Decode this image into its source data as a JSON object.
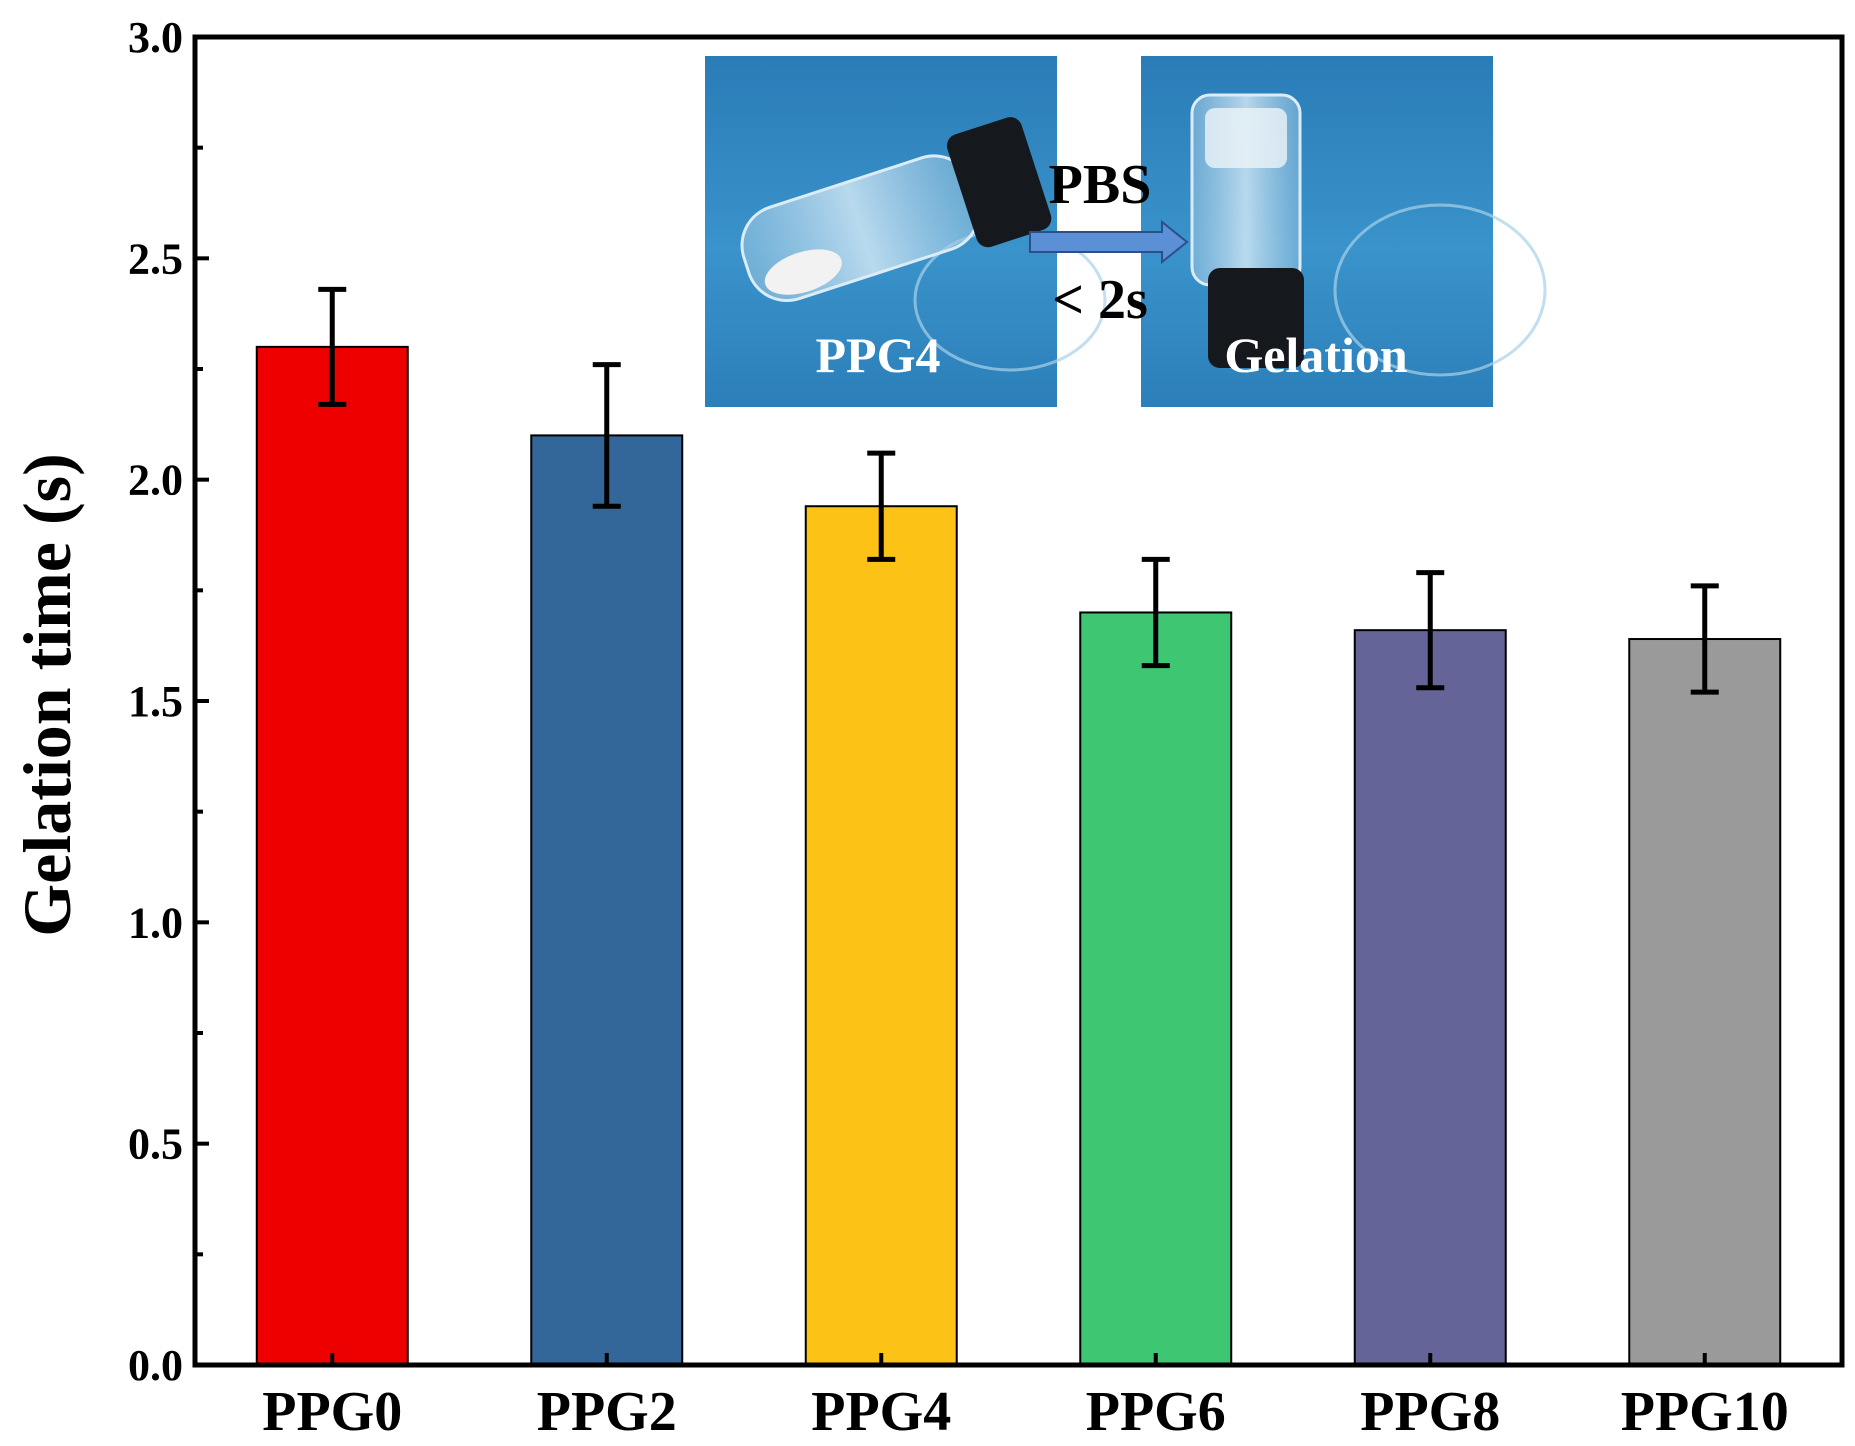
{
  "chart_data": {
    "type": "bar",
    "title": "",
    "xlabel": "",
    "ylabel": "Gelation time (s)",
    "ylim": [
      0,
      3.0
    ],
    "yticks": [
      "0.0",
      "0.5",
      "1.0",
      "1.5",
      "2.0",
      "2.5",
      "3.0"
    ],
    "categories": [
      "PPG0",
      "PPG2",
      "PPG4",
      "PPG6",
      "PPG8",
      "PPG10"
    ],
    "values": [
      2.3,
      2.1,
      1.94,
      1.7,
      1.66,
      1.64
    ],
    "errors": [
      0.13,
      0.16,
      0.12,
      0.12,
      0.13,
      0.12
    ],
    "colors": [
      "#ee0000",
      "#336699",
      "#fcc216",
      "#3fc672",
      "#656498",
      "#9a9a9a"
    ],
    "grid": false,
    "legend": "none",
    "inset": {
      "left_label": "PPG4",
      "right_label": "Gelation",
      "arrow_top_label": "PBS",
      "arrow_bottom_label": "< 2s",
      "photo_color": "#2f86bf",
      "arrow_color": "#5b8fd6"
    }
  }
}
